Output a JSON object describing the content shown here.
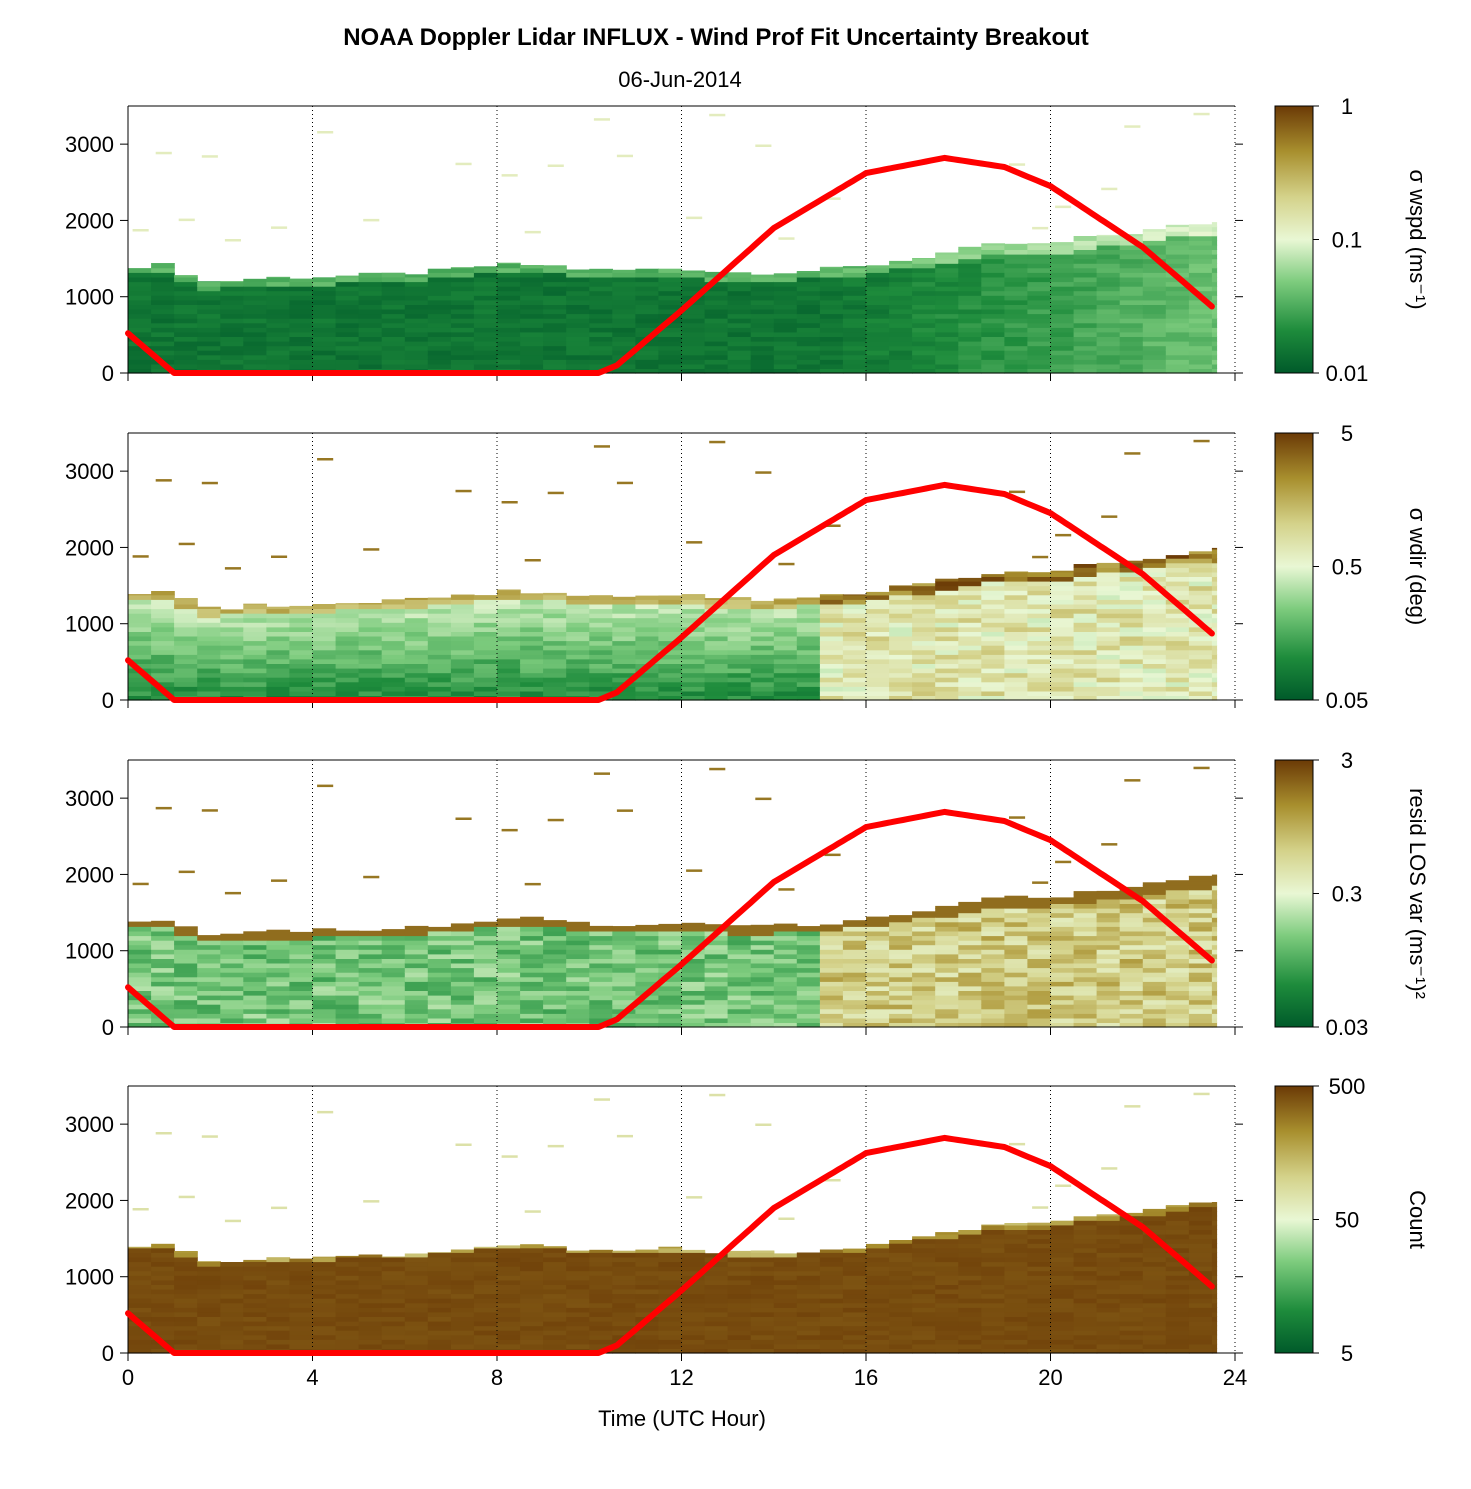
{
  "chart_data": {
    "type": "heatmap",
    "title": "NOAA Doppler Lidar INFLUX - Wind Prof Fit Uncertainty Breakout",
    "subtitle": "06-Jun-2014",
    "xlabel": "Time (UTC Hour)",
    "xlim": [
      0,
      24
    ],
    "xticks": [
      0,
      4,
      8,
      12,
      16,
      20,
      24
    ],
    "ylim": [
      0,
      3500
    ],
    "yticks": [
      0,
      1000,
      2000,
      3000
    ],
    "grid": "x-dotted",
    "colormap": [
      "#005a2a",
      "#1e8c3c",
      "#7ccb7d",
      "#e9f7d4",
      "#d4d28a",
      "#a88f2e",
      "#6b3a06"
    ],
    "curve_color": "#ff0000",
    "sun_elevation_curve": {
      "x": [
        0,
        1,
        10.2,
        10.6,
        12,
        14,
        16,
        17.7,
        19,
        20,
        22,
        23.6
      ],
      "y": [
        520,
        0,
        0,
        100,
        820,
        1900,
        2620,
        2820,
        2700,
        2450,
        1650,
        820
      ]
    },
    "boundary_layer_top": {
      "x": [
        0,
        1,
        1.5,
        2,
        3,
        4,
        5,
        6,
        7,
        8,
        9,
        10,
        11,
        12,
        13,
        14,
        15,
        16,
        17,
        18,
        19,
        20,
        21,
        22,
        23,
        23.6
      ],
      "y": [
        1400,
        1420,
        1200,
        1200,
        1250,
        1260,
        1280,
        1300,
        1350,
        1420,
        1420,
        1350,
        1350,
        1380,
        1320,
        1320,
        1350,
        1400,
        1500,
        1600,
        1700,
        1680,
        1800,
        1850,
        1950,
        1980
      ]
    },
    "panels": [
      {
        "name": "sigma-wspd",
        "colorbar_label": "σ wspd (ms⁻¹)",
        "colorbar_ticks": [
          "1",
          "0.1",
          "0.01"
        ],
        "scale": "log"
      },
      {
        "name": "sigma-wdir",
        "colorbar_label": "σ wdir (deg)",
        "colorbar_ticks": [
          "5",
          "0.5",
          "0.05"
        ],
        "scale": "log"
      },
      {
        "name": "resid-los-var",
        "colorbar_label": "resid LOS var (ms⁻¹)²",
        "colorbar_ticks": [
          "3",
          "0.3",
          "0.03"
        ],
        "scale": "log"
      },
      {
        "name": "count",
        "colorbar_label": "Count",
        "colorbar_ticks": [
          "500",
          "50",
          "5"
        ],
        "scale": "log"
      }
    ]
  }
}
